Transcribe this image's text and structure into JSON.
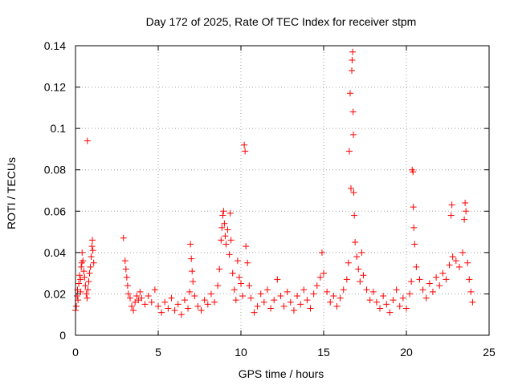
{
  "chart_data": {
    "type": "scatter",
    "title": "Day 172 of 2025, Rate Of TEC Index for receiver stpm",
    "xlabel": "GPS time / hours",
    "ylabel": "ROTI / TECUs",
    "xlim": [
      0,
      25
    ],
    "ylim": [
      0,
      0.14
    ],
    "xticks": [
      "0",
      "5",
      "10",
      "15",
      "20",
      "25"
    ],
    "yticks": [
      "0",
      "0.02",
      "0.04",
      "0.06",
      "0.08",
      "0.1",
      "0.12",
      "0.14"
    ],
    "grid": true,
    "marker": "+",
    "color": "#ff0000",
    "series": [
      {
        "name": "ROTI",
        "points": [
          [
            0.0,
            0.012
          ],
          [
            0.05,
            0.014
          ],
          [
            0.1,
            0.019
          ],
          [
            0.12,
            0.022
          ],
          [
            0.15,
            0.017
          ],
          [
            0.2,
            0.025
          ],
          [
            0.25,
            0.029
          ],
          [
            0.3,
            0.027
          ],
          [
            0.32,
            0.021
          ],
          [
            0.35,
            0.033
          ],
          [
            0.38,
            0.035
          ],
          [
            0.4,
            0.04
          ],
          [
            0.45,
            0.036
          ],
          [
            0.5,
            0.031
          ],
          [
            0.55,
            0.028
          ],
          [
            0.6,
            0.024
          ],
          [
            0.65,
            0.02
          ],
          [
            0.7,
            0.018
          ],
          [
            0.72,
            0.094
          ],
          [
            0.75,
            0.022
          ],
          [
            0.8,
            0.026
          ],
          [
            0.85,
            0.03
          ],
          [
            0.9,
            0.033
          ],
          [
            0.95,
            0.038
          ],
          [
            1.0,
            0.043
          ],
          [
            1.02,
            0.046
          ],
          [
            1.05,
            0.041
          ],
          [
            1.1,
            0.035
          ],
          [
            2.9,
            0.047
          ],
          [
            3.0,
            0.036
          ],
          [
            3.05,
            0.032
          ],
          [
            3.1,
            0.028
          ],
          [
            3.15,
            0.024
          ],
          [
            3.2,
            0.02
          ],
          [
            3.3,
            0.018
          ],
          [
            3.4,
            0.014
          ],
          [
            3.5,
            0.012
          ],
          [
            3.6,
            0.016
          ],
          [
            3.7,
            0.019
          ],
          [
            3.8,
            0.017
          ],
          [
            3.9,
            0.021
          ],
          [
            4.0,
            0.018
          ],
          [
            4.2,
            0.015
          ],
          [
            4.4,
            0.019
          ],
          [
            4.6,
            0.016
          ],
          [
            4.8,
            0.022
          ],
          [
            5.0,
            0.014
          ],
          [
            5.2,
            0.011
          ],
          [
            5.4,
            0.016
          ],
          [
            5.6,
            0.013
          ],
          [
            5.8,
            0.018
          ],
          [
            6.0,
            0.012
          ],
          [
            6.2,
            0.015
          ],
          [
            6.4,
            0.01
          ],
          [
            6.6,
            0.017
          ],
          [
            6.8,
            0.013
          ],
          [
            6.9,
            0.021
          ],
          [
            6.95,
            0.044
          ],
          [
            7.0,
            0.037
          ],
          [
            7.05,
            0.031
          ],
          [
            7.1,
            0.026
          ],
          [
            7.2,
            0.019
          ],
          [
            7.4,
            0.014
          ],
          [
            7.6,
            0.012
          ],
          [
            7.8,
            0.017
          ],
          [
            8.0,
            0.015
          ],
          [
            8.2,
            0.02
          ],
          [
            8.4,
            0.016
          ],
          [
            8.6,
            0.024
          ],
          [
            8.7,
            0.032
          ],
          [
            8.8,
            0.046
          ],
          [
            8.85,
            0.052
          ],
          [
            8.9,
            0.058
          ],
          [
            8.95,
            0.06
          ],
          [
            9.0,
            0.054
          ],
          [
            9.05,
            0.048
          ],
          [
            9.1,
            0.044
          ],
          [
            9.2,
            0.051
          ],
          [
            9.3,
            0.039
          ],
          [
            9.35,
            0.059
          ],
          [
            9.4,
            0.046
          ],
          [
            9.5,
            0.03
          ],
          [
            9.6,
            0.022
          ],
          [
            9.7,
            0.017
          ],
          [
            9.8,
            0.036
          ],
          [
            9.9,
            0.028
          ],
          [
            10.0,
            0.025
          ],
          [
            10.1,
            0.019
          ],
          [
            10.2,
            0.092
          ],
          [
            10.25,
            0.089
          ],
          [
            10.3,
            0.043
          ],
          [
            10.4,
            0.035
          ],
          [
            10.5,
            0.024
          ],
          [
            10.6,
            0.018
          ],
          [
            10.8,
            0.011
          ],
          [
            11.0,
            0.014
          ],
          [
            11.2,
            0.02
          ],
          [
            11.4,
            0.016
          ],
          [
            11.6,
            0.022
          ],
          [
            11.8,
            0.013
          ],
          [
            12.0,
            0.017
          ],
          [
            12.2,
            0.027
          ],
          [
            12.4,
            0.019
          ],
          [
            12.6,
            0.014
          ],
          [
            12.8,
            0.021
          ],
          [
            13.0,
            0.016
          ],
          [
            13.2,
            0.012
          ],
          [
            13.4,
            0.019
          ],
          [
            13.6,
            0.015
          ],
          [
            13.8,
            0.022
          ],
          [
            14.0,
            0.017
          ],
          [
            14.2,
            0.013
          ],
          [
            14.4,
            0.02
          ],
          [
            14.6,
            0.024
          ],
          [
            14.8,
            0.028
          ],
          [
            14.9,
            0.04
          ],
          [
            15.0,
            0.03
          ],
          [
            15.2,
            0.021
          ],
          [
            15.4,
            0.016
          ],
          [
            15.6,
            0.019
          ],
          [
            15.8,
            0.014
          ],
          [
            16.0,
            0.018
          ],
          [
            16.2,
            0.022
          ],
          [
            16.4,
            0.027
          ],
          [
            16.5,
            0.035
          ],
          [
            16.55,
            0.089
          ],
          [
            16.6,
            0.117
          ],
          [
            16.65,
            0.071
          ],
          [
            16.7,
            0.128
          ],
          [
            16.72,
            0.133
          ],
          [
            16.75,
            0.137
          ],
          [
            16.78,
            0.108
          ],
          [
            16.8,
            0.097
          ],
          [
            16.82,
            0.069
          ],
          [
            16.85,
            0.058
          ],
          [
            16.9,
            0.045
          ],
          [
            17.0,
            0.038
          ],
          [
            17.1,
            0.032
          ],
          [
            17.2,
            0.026
          ],
          [
            17.3,
            0.04
          ],
          [
            17.4,
            0.029
          ],
          [
            17.6,
            0.022
          ],
          [
            17.8,
            0.017
          ],
          [
            18.0,
            0.021
          ],
          [
            18.2,
            0.016
          ],
          [
            18.4,
            0.013
          ],
          [
            18.6,
            0.019
          ],
          [
            18.8,
            0.015
          ],
          [
            19.0,
            0.011
          ],
          [
            19.2,
            0.017
          ],
          [
            19.4,
            0.022
          ],
          [
            19.6,
            0.014
          ],
          [
            19.8,
            0.018
          ],
          [
            20.0,
            0.013
          ],
          [
            20.2,
            0.02
          ],
          [
            20.3,
            0.026
          ],
          [
            20.35,
            0.08
          ],
          [
            20.4,
            0.079
          ],
          [
            20.42,
            0.062
          ],
          [
            20.45,
            0.052
          ],
          [
            20.5,
            0.044
          ],
          [
            20.6,
            0.033
          ],
          [
            20.8,
            0.027
          ],
          [
            21.0,
            0.022
          ],
          [
            21.2,
            0.018
          ],
          [
            21.4,
            0.025
          ],
          [
            21.6,
            0.021
          ],
          [
            21.8,
            0.028
          ],
          [
            22.0,
            0.024
          ],
          [
            22.2,
            0.03
          ],
          [
            22.4,
            0.027
          ],
          [
            22.6,
            0.034
          ],
          [
            22.7,
            0.058
          ],
          [
            22.75,
            0.063
          ],
          [
            22.8,
            0.038
          ],
          [
            23.0,
            0.036
          ],
          [
            23.2,
            0.033
          ],
          [
            23.4,
            0.04
          ],
          [
            23.5,
            0.056
          ],
          [
            23.55,
            0.064
          ],
          [
            23.6,
            0.06
          ],
          [
            23.7,
            0.035
          ],
          [
            23.8,
            0.027
          ],
          [
            23.9,
            0.021
          ],
          [
            24.0,
            0.016
          ]
        ]
      }
    ]
  }
}
